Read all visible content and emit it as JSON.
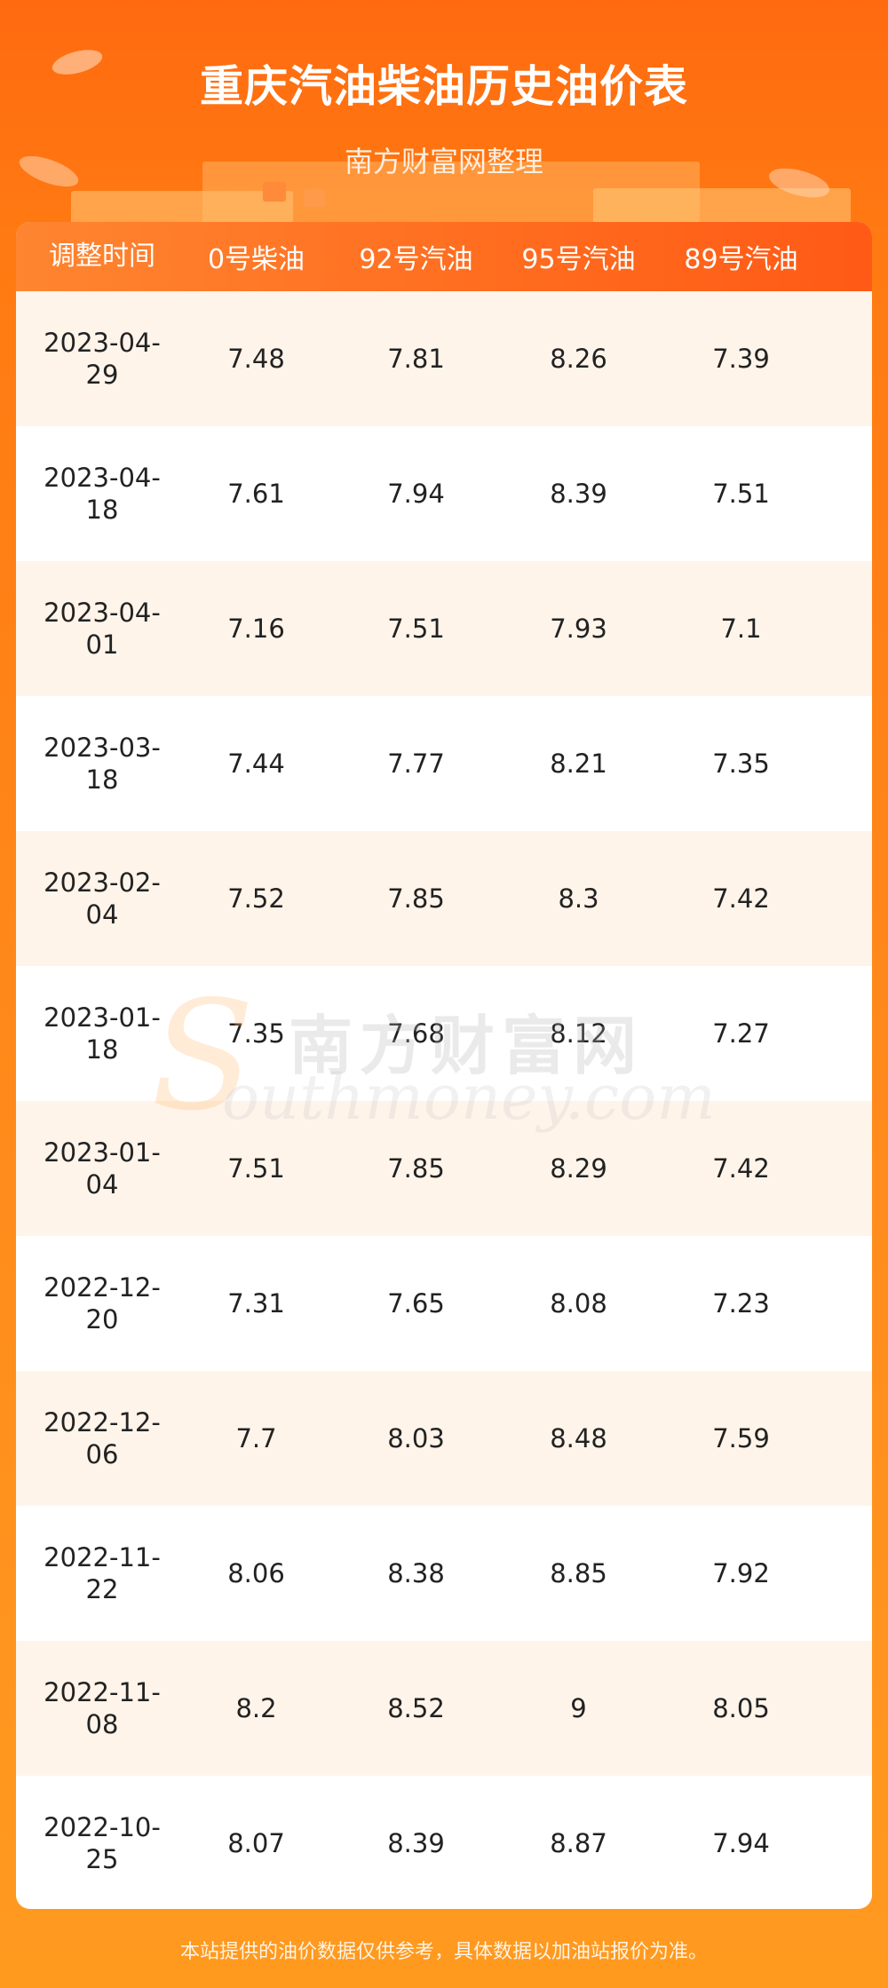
{
  "header": {
    "title": "重庆汽油柴油历史油价表",
    "subtitle": "南方财富网整理"
  },
  "table": {
    "columns": [
      "调整时间",
      "0号柴油",
      "92号汽油",
      "95号汽油",
      "89号汽油"
    ],
    "rows": [
      {
        "date_line1": "2023-04-",
        "date_line2": "29",
        "diesel0": "7.48",
        "gas92": "7.81",
        "gas95": "8.26",
        "gas89": "7.39"
      },
      {
        "date_line1": "2023-04-",
        "date_line2": "18",
        "diesel0": "7.61",
        "gas92": "7.94",
        "gas95": "8.39",
        "gas89": "7.51"
      },
      {
        "date_line1": "2023-04-",
        "date_line2": "01",
        "diesel0": "7.16",
        "gas92": "7.51",
        "gas95": "7.93",
        "gas89": "7.1"
      },
      {
        "date_line1": "2023-03-",
        "date_line2": "18",
        "diesel0": "7.44",
        "gas92": "7.77",
        "gas95": "8.21",
        "gas89": "7.35"
      },
      {
        "date_line1": "2023-02-",
        "date_line2": "04",
        "diesel0": "7.52",
        "gas92": "7.85",
        "gas95": "8.3",
        "gas89": "7.42"
      },
      {
        "date_line1": "2023-01-",
        "date_line2": "18",
        "diesel0": "7.35",
        "gas92": "7.68",
        "gas95": "8.12",
        "gas89": "7.27"
      },
      {
        "date_line1": "2023-01-",
        "date_line2": "04",
        "diesel0": "7.51",
        "gas92": "7.85",
        "gas95": "8.29",
        "gas89": "7.42"
      },
      {
        "date_line1": "2022-12-",
        "date_line2": "20",
        "diesel0": "7.31",
        "gas92": "7.65",
        "gas95": "8.08",
        "gas89": "7.23"
      },
      {
        "date_line1": "2022-12-",
        "date_line2": "06",
        "diesel0": "7.7",
        "gas92": "8.03",
        "gas95": "8.48",
        "gas89": "7.59"
      },
      {
        "date_line1": "2022-11-",
        "date_line2": "22",
        "diesel0": "8.06",
        "gas92": "8.38",
        "gas95": "8.85",
        "gas89": "7.92"
      },
      {
        "date_line1": "2022-11-",
        "date_line2": "08",
        "diesel0": "8.2",
        "gas92": "8.52",
        "gas95": "9",
        "gas89": "8.05"
      },
      {
        "date_line1": "2022-10-",
        "date_line2": "25",
        "diesel0": "8.07",
        "gas92": "8.39",
        "gas95": "8.87",
        "gas89": "7.94"
      }
    ]
  },
  "watermark": {
    "cn": "南方财富网",
    "en": "outhmoney.com",
    "logo_letter": "S"
  },
  "footer": {
    "note": "本站提供的油价数据仅供参考，具体数据以加油站报价为准。"
  },
  "colors": {
    "accent": "#ff6b1e",
    "row_alt": "#fff4ea",
    "background": "#ff8c1c"
  }
}
